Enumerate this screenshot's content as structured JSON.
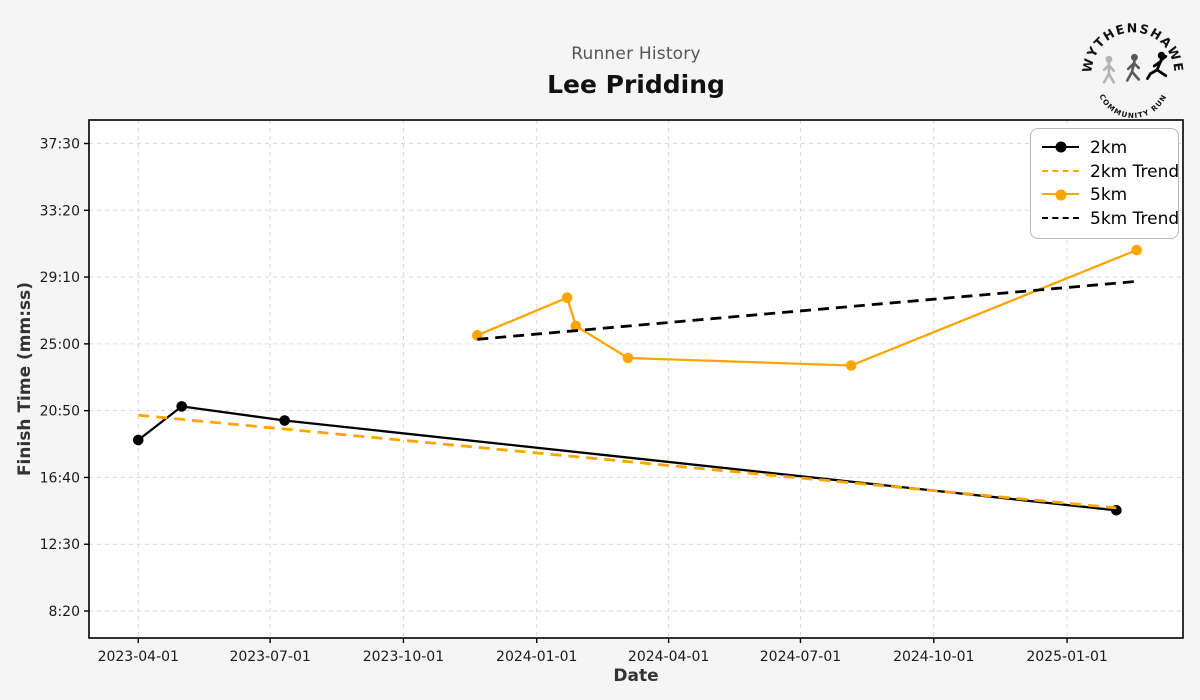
{
  "page": {
    "background": "#f5f5f5"
  },
  "logo": {
    "arc_top": "WYTHENSHAWE",
    "arc_bottom": "COMMUNITY RUN"
  },
  "chart_data": {
    "type": "line",
    "suptitle": "Runner History",
    "title": "Lee Pridding",
    "xlabel": "Date",
    "ylabel": "Finish Time (mm:ss)",
    "grid": true,
    "legend_position": "upper right",
    "x_ticks": [
      "2023-04-01",
      "2023-07-01",
      "2023-10-01",
      "2024-01-01",
      "2024-04-01",
      "2024-07-01",
      "2024-10-01",
      "2025-01-01"
    ],
    "y_ticks": [
      "8:20",
      "12:30",
      "16:40",
      "20:50",
      "25:00",
      "29:10",
      "33:20",
      "37:30"
    ],
    "x_range": [
      "2023-02-26",
      "2025-03-22"
    ],
    "y_range_seconds": [
      399,
      2338
    ],
    "colors": {
      "series_2km": "#000000",
      "series_2km_trend": "#FFA500",
      "series_5km": "#FFA500",
      "series_5km_trend": "#000000",
      "figure_bg": "#f5f5f5",
      "axes_bg": "#ffffff",
      "grid": "#d9d9d9",
      "title_gray": "#555555"
    },
    "series": [
      {
        "name": "2km",
        "color": "#000000",
        "style": "solid",
        "marker": true,
        "points": [
          {
            "date": "2023-04-01",
            "time": "19:00"
          },
          {
            "date": "2023-05-01",
            "time": "21:06"
          },
          {
            "date": "2023-07-11",
            "time": "20:13"
          },
          {
            "date": "2025-02-04",
            "time": "14:37"
          }
        ]
      },
      {
        "name": "2km Trend",
        "color": "#FFA500",
        "style": "dashed",
        "marker": false,
        "points": [
          {
            "date": "2023-04-01",
            "time": "20:33"
          },
          {
            "date": "2025-02-04",
            "time": "14:46"
          }
        ]
      },
      {
        "name": "5km",
        "color": "#FFA500",
        "style": "solid",
        "marker": true,
        "points": [
          {
            "date": "2023-11-21",
            "time": "25:32"
          },
          {
            "date": "2024-01-22",
            "time": "27:53"
          },
          {
            "date": "2024-01-28",
            "time": "26:07"
          },
          {
            "date": "2024-03-04",
            "time": "24:07"
          },
          {
            "date": "2024-08-05",
            "time": "23:39"
          },
          {
            "date": "2025-02-18",
            "time": "30:51"
          }
        ]
      },
      {
        "name": "5km Trend",
        "color": "#000000",
        "style": "dashed",
        "marker": false,
        "points": [
          {
            "date": "2023-11-21",
            "time": "25:17"
          },
          {
            "date": "2025-02-18",
            "time": "28:54"
          }
        ]
      }
    ]
  }
}
